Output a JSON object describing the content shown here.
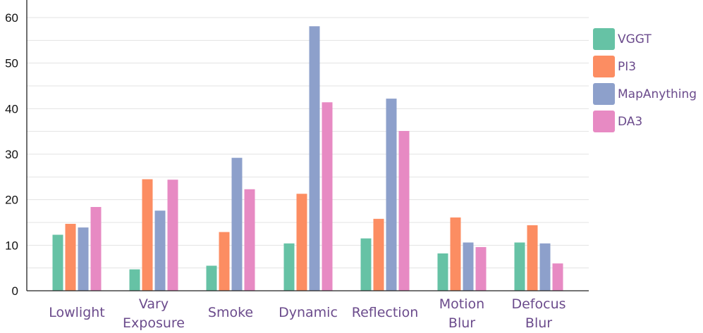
{
  "chart_data": {
    "type": "bar",
    "categories": [
      [
        "Lowlight"
      ],
      [
        "Vary",
        "Exposure"
      ],
      [
        "Smoke"
      ],
      [
        "Dynamic"
      ],
      [
        "Reflection"
      ],
      [
        "Motion",
        "Blur"
      ],
      [
        "Defocus",
        "Blur"
      ]
    ],
    "series": [
      {
        "name": "VGGT",
        "color": "#66c2a5",
        "values": [
          12.3,
          4.7,
          5.5,
          10.4,
          11.5,
          8.2,
          10.6
        ]
      },
      {
        "name": "PI3",
        "color": "#fc8d62",
        "values": [
          14.7,
          24.5,
          12.9,
          21.3,
          15.8,
          16.1,
          14.4
        ]
      },
      {
        "name": "MapAnything",
        "color": "#8da0cb",
        "values": [
          13.9,
          17.6,
          29.2,
          58.1,
          42.2,
          10.6,
          10.4
        ]
      },
      {
        "name": "DA3",
        "color": "#e78ac3",
        "values": [
          18.4,
          24.4,
          22.3,
          41.4,
          35.1,
          9.6,
          6.0
        ]
      }
    ],
    "yticks": [
      0,
      10,
      20,
      30,
      40,
      50,
      60
    ],
    "ylim": [
      0,
      60
    ],
    "grid": true,
    "legend_position": "top-right",
    "title": "",
    "xlabel": "",
    "ylabel": ""
  }
}
